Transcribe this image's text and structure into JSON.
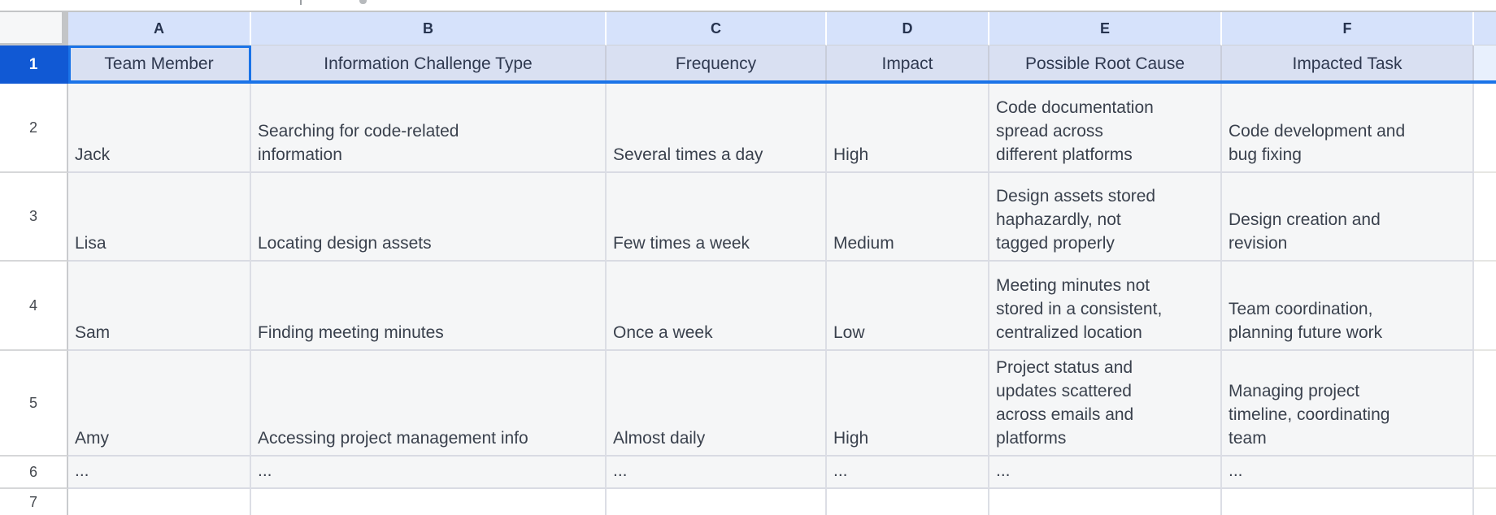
{
  "sheet": {
    "columns": [
      "A",
      "B",
      "C",
      "D",
      "E",
      "F"
    ],
    "row_numbers": [
      "1",
      "2",
      "3",
      "4",
      "5",
      "6",
      "7"
    ],
    "selection": {
      "selected_row": "1",
      "active_cell": "A1",
      "selection_color": "#1a73e8",
      "selected_row_header_bg": "#1159d4"
    },
    "table": {
      "headers": [
        "Team Member",
        "Information Challenge Type",
        "Frequency",
        "Impact",
        "Possible Root Cause",
        "Impacted Task"
      ],
      "rows": [
        [
          "Jack",
          "Searching for code-related\ninformation",
          "Several times a day",
          "High",
          "Code documentation\nspread across\ndifferent platforms",
          "Code development and\nbug fixing"
        ],
        [
          "Lisa",
          "Locating design assets",
          "Few times a week",
          "Medium",
          "Design assets stored\nhaphazardly, not\ntagged properly",
          "Design creation and\nrevision"
        ],
        [
          "Sam",
          "Finding meeting minutes",
          "Once a week",
          "Low",
          "Meeting minutes not\nstored in a consistent,\ncentralized location",
          "Team coordination,\nplanning future work"
        ],
        [
          "Amy",
          "Accessing project management info",
          "Almost daily",
          "High",
          "Project status and\nupdates scattered\nacross emails and\nplatforms",
          "Managing project\ntimeline, coordinating\nteam"
        ],
        [
          "...",
          "...",
          "...",
          "...",
          "...",
          "..."
        ]
      ]
    },
    "colors": {
      "column_header_bg": "#d6e2fb",
      "table_header_row_bg": "#d9e0f2",
      "data_cell_bg": "#f5f6f7",
      "grid_line": "#dcdee5",
      "cell_text": "#3a414d",
      "header_text": "#2f3950"
    }
  }
}
